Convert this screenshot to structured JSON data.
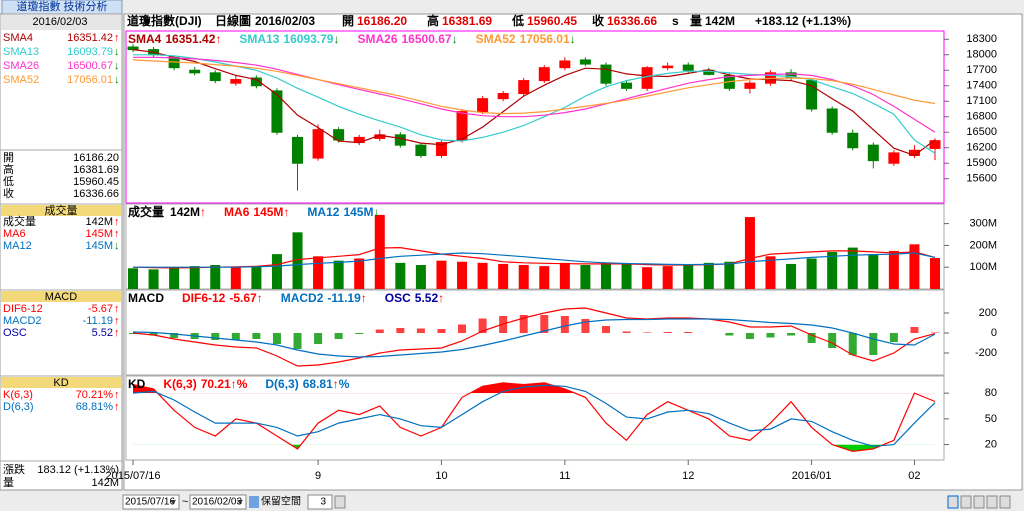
{
  "tab": "道瓊指數 技術分析",
  "header": {
    "name": "道瓊指數(DJI)",
    "period": "日線圖",
    "date": "2016/02/03",
    "open_label": "開",
    "open": "16186.20",
    "high_label": "高",
    "high": "16381.69",
    "low_label": "低",
    "low": "15960.45",
    "close_label": "收",
    "close": "16336.66",
    "close_flag": "s",
    "vol_label": "量",
    "vol": "142M",
    "change": "+183.12 (+1.13%)"
  },
  "footer": {
    "change_label": "漲跌",
    "change": "183.12 (+1.13%)",
    "vol_label": "量",
    "vol": "142M"
  },
  "toolbar": {
    "start": "2015/07/16",
    "sep": "~",
    "end": "2016/02/03",
    "reserve": "保留空間",
    "reserve_value": "3"
  },
  "chart_data": [
    {
      "type": "candlestick",
      "up_color": "#ff0000",
      "down_color": "#008000",
      "categories": [
        "2015/07/16",
        null,
        null,
        null,
        null,
        null,
        null,
        null,
        null,
        "9",
        null,
        null,
        null,
        null,
        null,
        "10",
        null,
        null,
        null,
        null,
        null,
        "11",
        null,
        null,
        null,
        null,
        null,
        "12",
        null,
        null,
        null,
        null,
        null,
        "2016/01",
        null,
        null,
        null,
        null,
        "02",
        null
      ],
      "open": [
        18150,
        18100,
        17950,
        17700,
        17650,
        17450,
        17550,
        17300,
        16400,
        16000,
        16550,
        16300,
        16380,
        16450,
        16250,
        16050,
        16350,
        16900,
        17150,
        17250,
        17500,
        17750,
        17900,
        17800,
        17450,
        17350,
        17750,
        17800,
        17700,
        17600,
        17350,
        17450,
        17650,
        17500,
        16950,
        16480,
        16250,
        15900,
        16050,
        16186.2
      ],
      "high": [
        18200,
        18150,
        17980,
        17760,
        17700,
        17600,
        17600,
        17350,
        16450,
        16650,
        16600,
        16450,
        16550,
        16500,
        16300,
        16350,
        16950,
        17200,
        17300,
        17550,
        17800,
        17950,
        17950,
        17850,
        17500,
        17780,
        17850,
        17850,
        17750,
        17650,
        17500,
        17700,
        17720,
        17550,
        17000,
        16550,
        16300,
        16150,
        16250,
        16381.69
      ],
      "low": [
        18050,
        17950,
        17700,
        17600,
        17450,
        17400,
        17350,
        16450,
        15370,
        15950,
        16300,
        16250,
        16330,
        16200,
        16000,
        16000,
        16300,
        16850,
        17100,
        17200,
        17450,
        17700,
        17780,
        17400,
        17300,
        17300,
        17700,
        17650,
        17600,
        17300,
        17250,
        17400,
        17500,
        16900,
        16450,
        16150,
        15800,
        15850,
        16000,
        15960.45
      ],
      "close": [
        18100,
        18000,
        17750,
        17650,
        17500,
        17520,
        17400,
        16500,
        15900,
        16550,
        16350,
        16400,
        16450,
        16250,
        16050,
        16300,
        16900,
        17150,
        17250,
        17500,
        17750,
        17880,
        17820,
        17450,
        17350,
        17750,
        17780,
        17700,
        17620,
        17350,
        17450,
        17650,
        17550,
        16950,
        16500,
        16200,
        15950,
        16100,
        16150,
        16336.66
      ],
      "ylim": [
        15130,
        18460
      ],
      "yticks": [
        15600,
        15900,
        16200,
        16500,
        16800,
        17100,
        17400,
        17700,
        18000,
        18300
      ],
      "series": [
        {
          "name": "SMA4",
          "color": "#b00000",
          "legend_value": "16351.42",
          "legend_arrow": "↑",
          "arrow_color": "#ff0000",
          "values": [
            18100,
            18050,
            17950,
            17870,
            17730,
            17600,
            17520,
            17230,
            16830,
            16590,
            16330,
            16300,
            16440,
            16380,
            16290,
            16260,
            16370,
            16600,
            16900,
            17200,
            17410,
            17600,
            17740,
            17720,
            17630,
            17590,
            17580,
            17640,
            17710,
            17610,
            17530,
            17520,
            17500,
            17400,
            17150,
            16910,
            16550,
            16190,
            16050,
            16351.42
          ]
        },
        {
          "name": "SMA13",
          "color": "#33cccc",
          "legend_value": "16093.79",
          "legend_arrow": "↓",
          "arrow_color": "#008000",
          "values": [
            18000,
            18000,
            17980,
            17930,
            17860,
            17780,
            17700,
            17550,
            17350,
            17180,
            17000,
            16850,
            16720,
            16600,
            16450,
            16350,
            16330,
            16400,
            16500,
            16630,
            16800,
            16980,
            17200,
            17380,
            17500,
            17580,
            17640,
            17680,
            17680,
            17650,
            17620,
            17600,
            17580,
            17520,
            17380,
            17250,
            17060,
            16850,
            16350,
            16093.79
          ]
        },
        {
          "name": "SMA26",
          "color": "#ff33cc",
          "legend_value": "16500.67",
          "legend_arrow": "↓",
          "arrow_color": "#008000",
          "values": [
            17950,
            17950,
            17940,
            17920,
            17890,
            17850,
            17800,
            17720,
            17620,
            17520,
            17420,
            17330,
            17240,
            17150,
            17050,
            16950,
            16870,
            16820,
            16800,
            16800,
            16830,
            16880,
            16950,
            17050,
            17150,
            17250,
            17350,
            17450,
            17520,
            17580,
            17600,
            17620,
            17630,
            17600,
            17520,
            17400,
            17230,
            17000,
            16750,
            16500.67
          ]
        },
        {
          "name": "SMA52",
          "color": "#ff9933",
          "legend_value": "17056.01",
          "legend_arrow": "↓",
          "arrow_color": "#008000",
          "values": [
            17900,
            17880,
            17860,
            17840,
            17810,
            17780,
            17740,
            17680,
            17600,
            17520,
            17440,
            17360,
            17280,
            17200,
            17100,
            17000,
            16930,
            16880,
            16860,
            16870,
            16900,
            16950,
            17000,
            17060,
            17120,
            17200,
            17280,
            17360,
            17420,
            17480,
            17520,
            17540,
            17550,
            17540,
            17500,
            17430,
            17330,
            17220,
            17120,
            17056.01
          ]
        }
      ]
    },
    {
      "type": "volume",
      "name": "成交量",
      "legend_value": "142M",
      "legend_arrow": "↑",
      "arrow_color": "#ff0000",
      "color": "#000000",
      "values": [
        95,
        90,
        100,
        105,
        110,
        100,
        105,
        160,
        260,
        150,
        130,
        140,
        340,
        120,
        110,
        130,
        125,
        120,
        115,
        110,
        105,
        120,
        110,
        120,
        115,
        100,
        105,
        110,
        120,
        125,
        330,
        150,
        115,
        140,
        170,
        190,
        160,
        175,
        205,
        142
      ],
      "ylim": [
        0,
        390
      ],
      "yticks": [
        {
          "value": 100,
          "label": "100M"
        },
        {
          "value": 200,
          "label": "200M"
        },
        {
          "value": 300,
          "label": "300M"
        }
      ],
      "series": [
        {
          "name": "MA6",
          "color": "#ff0000",
          "legend_value": "145M",
          "legend_arrow": "↑",
          "arrow_color": "#ff0000",
          "values": [
            100,
            98,
            97,
            98,
            100,
            102,
            104,
            112,
            135,
            143,
            150,
            158,
            188,
            190,
            175,
            160,
            150,
            140,
            125,
            120,
            118,
            116,
            115,
            115,
            115,
            112,
            110,
            110,
            112,
            115,
            140,
            160,
            165,
            170,
            175,
            175,
            170,
            165,
            170,
            145
          ]
        },
        {
          "name": "MA12",
          "color": "#0070c0",
          "legend_value": "145M",
          "legend_arrow": "↓",
          "arrow_color": "#008000",
          "values": [
            100,
            100,
            100,
            100,
            100,
            100,
            102,
            105,
            112,
            118,
            122,
            128,
            140,
            150,
            155,
            160,
            165,
            162,
            155,
            148,
            140,
            132,
            125,
            120,
            117,
            115,
            113,
            112,
            113,
            115,
            125,
            132,
            138,
            145,
            150,
            155,
            158,
            160,
            165,
            145
          ]
        }
      ]
    },
    {
      "type": "macd",
      "title": "MACD",
      "pos_color": "#ff4040",
      "neg_color": "#33aa33",
      "ylim": [
        -420,
        430
      ],
      "yticks": [
        200,
        0,
        -200
      ],
      "series": [
        {
          "name": "DIF6-12",
          "color": "#ff0000",
          "legend_value": "-5.67",
          "legend_arrow": "↑",
          "arrow_color": "#ff0000",
          "values": [
            0,
            -20,
            -60,
            -90,
            -120,
            -140,
            -150,
            -230,
            -330,
            -320,
            -290,
            -250,
            -200,
            -170,
            -160,
            -150,
            -80,
            20,
            90,
            150,
            200,
            240,
            250,
            200,
            150,
            140,
            150,
            150,
            140,
            110,
            60,
            60,
            70,
            -20,
            -100,
            -220,
            -280,
            -200,
            -60,
            -5.67
          ]
        },
        {
          "name": "MACD2",
          "color": "#0070c0",
          "legend_value": "-11.19",
          "legend_arrow": "↑",
          "arrow_color": "#ff0000",
          "values": [
            10,
            5,
            -10,
            -30,
            -50,
            -70,
            -90,
            -120,
            -170,
            -210,
            -230,
            -240,
            -235,
            -220,
            -205,
            -190,
            -165,
            -125,
            -80,
            -30,
            20,
            70,
            110,
            130,
            135,
            135,
            140,
            140,
            140,
            135,
            120,
            105,
            95,
            80,
            50,
            0,
            -60,
            -110,
            -120,
            -11.19
          ]
        },
        {
          "name": "OSC",
          "color": "#0000a0",
          "style": "bar",
          "legend_value": "5.52",
          "legend_arrow": "↑",
          "arrow_color": "#ff0000",
          "values": [
            -10,
            -25,
            -50,
            -60,
            -70,
            -70,
            -60,
            -110,
            -160,
            -110,
            -60,
            -10,
            35,
            50,
            45,
            40,
            85,
            145,
            170,
            180,
            180,
            170,
            140,
            70,
            15,
            5,
            10,
            10,
            0,
            -25,
            -60,
            -45,
            -25,
            -100,
            -150,
            -220,
            -220,
            -90,
            60,
            5.52
          ]
        }
      ]
    },
    {
      "type": "kd",
      "title": "KD",
      "unit": "%",
      "high_fill": "#ff0000",
      "low_fill": "#00cc00",
      "ylim": [
        2,
        100
      ],
      "yticks": [
        80,
        50,
        20
      ],
      "series": [
        {
          "name": "K(6,3)",
          "color": "#ff0000",
          "legend_value": "70.21",
          "legend_arrow": "↑",
          "arrow_color": "#ff0000",
          "values": [
            90,
            85,
            60,
            40,
            30,
            50,
            45,
            30,
            15,
            45,
            60,
            55,
            65,
            40,
            30,
            40,
            75,
            88,
            92,
            90,
            92,
            85,
            75,
            45,
            25,
            55,
            70,
            60,
            50,
            30,
            25,
            45,
            70,
            40,
            20,
            12,
            15,
            25,
            80,
            70.21
          ]
        },
        {
          "name": "D(6,3)",
          "color": "#0070c0",
          "legend_value": "68.81",
          "legend_arrow": "↑",
          "arrow_color": "#ff0000",
          "values": [
            80,
            82,
            72,
            58,
            45,
            45,
            45,
            40,
            30,
            35,
            45,
            50,
            55,
            50,
            42,
            40,
            55,
            70,
            82,
            87,
            89,
            88,
            82,
            68,
            52,
            50,
            58,
            60,
            56,
            45,
            36,
            38,
            50,
            47,
            35,
            25,
            18,
            20,
            45,
            68.81
          ]
        }
      ]
    }
  ]
}
